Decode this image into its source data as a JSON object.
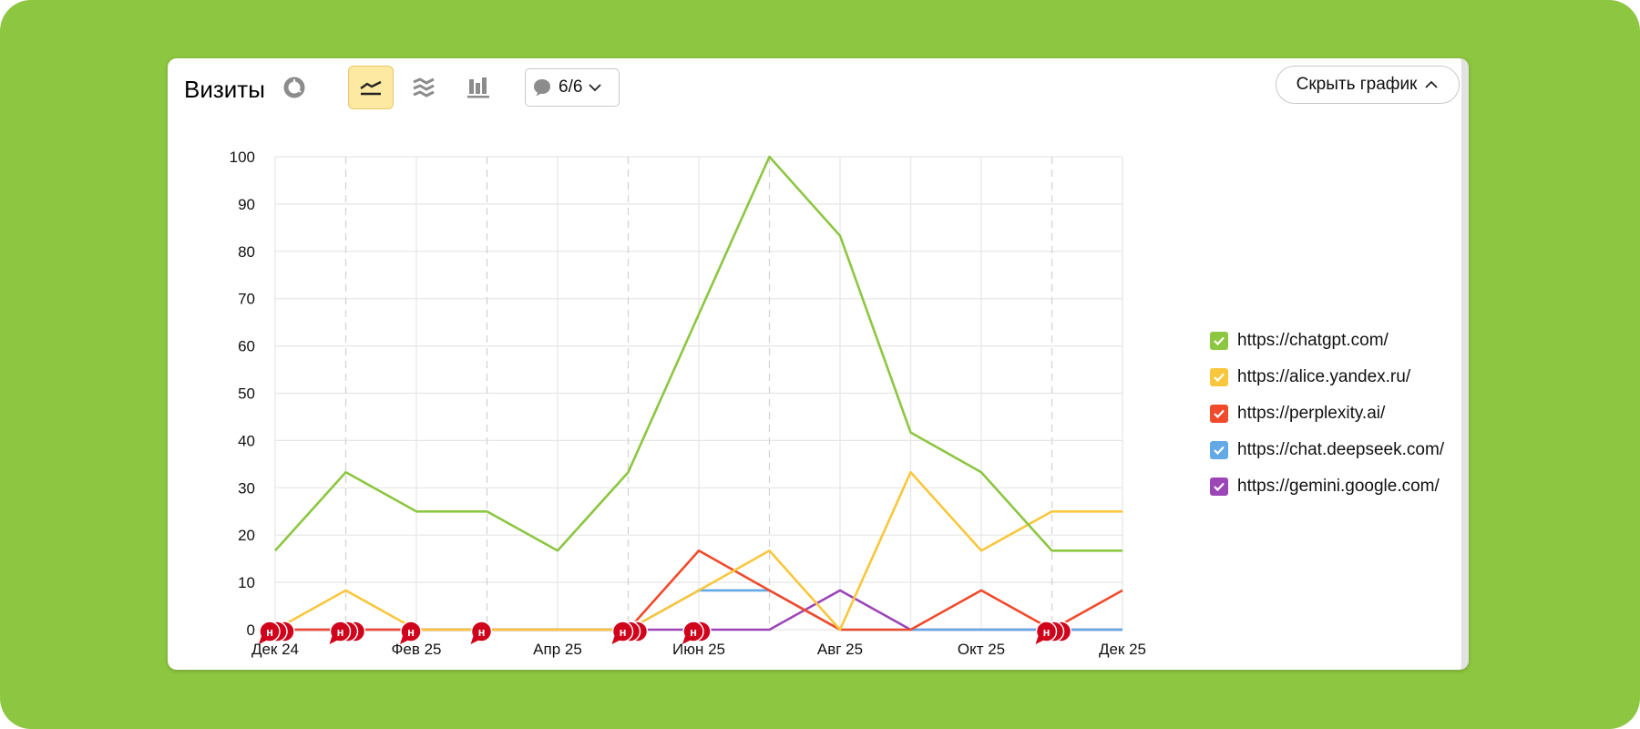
{
  "header": {
    "title": "Визиты",
    "comments_label": "6/6",
    "hide_label": "Скрыть график"
  },
  "toolbar": {
    "icons": [
      "pie-chart-icon",
      "line-chart-icon",
      "area-chart-icon",
      "bar-chart-icon"
    ],
    "active": "line-chart-icon"
  },
  "colors": {
    "background": "#8dc641",
    "chatgpt": "#8dc641",
    "alice": "#f8c73d",
    "perplexity": "#f04a2a",
    "deepseek": "#62a9e6",
    "gemini": "#9c45b6",
    "marker": "#d0021b"
  },
  "chart_data": {
    "type": "line",
    "title": "Визиты",
    "x_tick_labels": [
      "Дек 24",
      "Фев 25",
      "Апр 25",
      "Июн 25",
      "Авг 25",
      "Окт 25",
      "Дек 25"
    ],
    "x": [
      "Дек 24",
      "Янв 25",
      "Фев 25",
      "Мар 25",
      "Апр 25",
      "Май 25",
      "Июн 25",
      "Июл 25",
      "Авг 25",
      "Сен 25",
      "Окт 25",
      "Ноя 25",
      "Дек 25"
    ],
    "ylim": [
      0,
      100
    ],
    "y_ticks": [
      0,
      10,
      20,
      30,
      40,
      50,
      60,
      70,
      80,
      90,
      100
    ],
    "grid": true,
    "legend_position": "right",
    "series": [
      {
        "name": "https://chatgpt.com/",
        "color": "#8dc641",
        "values": [
          16.7,
          33.3,
          25,
          25,
          16.7,
          33.3,
          66.7,
          100,
          83.3,
          41.7,
          33.3,
          16.7,
          16.7
        ]
      },
      {
        "name": "https://alice.yandex.ru/",
        "color": "#f8c73d",
        "values": [
          0,
          8.3,
          0,
          0,
          0,
          0,
          8.3,
          16.7,
          0,
          33.3,
          16.7,
          25,
          25
        ]
      },
      {
        "name": "https://perplexity.ai/",
        "color": "#f04a2a",
        "values": [
          0,
          0,
          0,
          0,
          0,
          0,
          16.7,
          8.3,
          0,
          0,
          8.3,
          0,
          8.3
        ]
      },
      {
        "name": "https://chat.deepseek.com/",
        "color": "#62a9e6",
        "values": [
          0,
          0,
          0,
          0,
          0,
          0,
          8.3,
          8.3,
          0,
          0,
          0,
          0,
          0
        ]
      },
      {
        "name": "https://gemini.google.com/",
        "color": "#9c45b6",
        "values": [
          0,
          0,
          0,
          0,
          0,
          0,
          0,
          0,
          8.3,
          0,
          0,
          0,
          0
        ]
      }
    ],
    "annotation_markers": [
      {
        "x": 0,
        "count": 3,
        "label": "н"
      },
      {
        "x": 1,
        "count": 3,
        "label": "н"
      },
      {
        "x": 2,
        "count": 1,
        "label": "н"
      },
      {
        "x": 3,
        "count": 1,
        "label": "н"
      },
      {
        "x": 5,
        "count": 3,
        "label": "н"
      },
      {
        "x": 6,
        "count": 2,
        "label": "н"
      },
      {
        "x": 11,
        "count": 3,
        "label": "н"
      }
    ],
    "dashed_x": [
      1,
      3,
      5,
      7,
      11
    ]
  }
}
